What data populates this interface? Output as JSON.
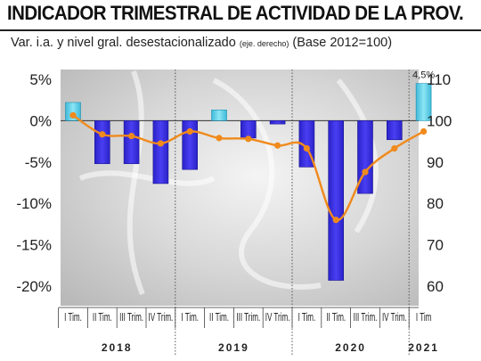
{
  "title": "INDICADOR TRIMESTRAL DE ACTIVIDAD DE LA PROV.",
  "subtitle": {
    "main": "Var. i.a. y nivel gral. desestacionalizado",
    "note": "(eje. derecho)",
    "base": "(Base 2012=100)"
  },
  "colors": {
    "bar_fill": "#3a2fe0",
    "bar_positive_fill": "#5fd3ea",
    "line": "#f08a1c",
    "background_gray": "#cfcfcf"
  },
  "chart_data": {
    "type": "bar",
    "categories": [
      "I Tim.",
      "II Tim.",
      "III Trim.",
      "IV Trim.",
      "I Tim.",
      "II Tim.",
      "III Trim.",
      "IV Trim.",
      "I Tim.",
      "II Tim.",
      "III Trim.",
      "IV Trim.",
      "I Tim"
    ],
    "years": [
      {
        "label": "2018",
        "start": 0,
        "end": 3
      },
      {
        "label": "2019",
        "start": 4,
        "end": 7
      },
      {
        "label": "2020",
        "start": 8,
        "end": 11
      },
      {
        "label": "2021",
        "start": 12,
        "end": 12
      }
    ],
    "series": [
      {
        "axis": "left",
        "type": "bar",
        "values": [
          2.2,
          -5.2,
          -5.2,
          -7.6,
          -5.9,
          1.3,
          -2.1,
          -0.4,
          -5.6,
          -19.3,
          -8.8,
          -2.3,
          4.5
        ]
      },
      {
        "axis": "right",
        "type": "line",
        "values": [
          101.3,
          96.7,
          96.3,
          94.5,
          97.4,
          95.8,
          95.6,
          94.0,
          93.3,
          76.0,
          87.6,
          93.3,
          97.4
        ]
      }
    ],
    "data_labels": [
      {
        "index": 12,
        "text": "4,5%"
      }
    ],
    "y_left": {
      "ticks": [
        5,
        0,
        -5,
        -10,
        -15,
        -20
      ],
      "tick_labels": [
        "5%",
        "0%",
        "-5%",
        "-10%",
        "-15%",
        "-20%"
      ],
      "ylim": [
        -20,
        5
      ]
    },
    "y_right": {
      "ticks": [
        110,
        100,
        90,
        80,
        70,
        60
      ],
      "tick_labels": [
        "110",
        "100",
        "90",
        "80",
        "70",
        "60"
      ],
      "ylim": [
        60,
        110
      ]
    },
    "grid": false
  }
}
